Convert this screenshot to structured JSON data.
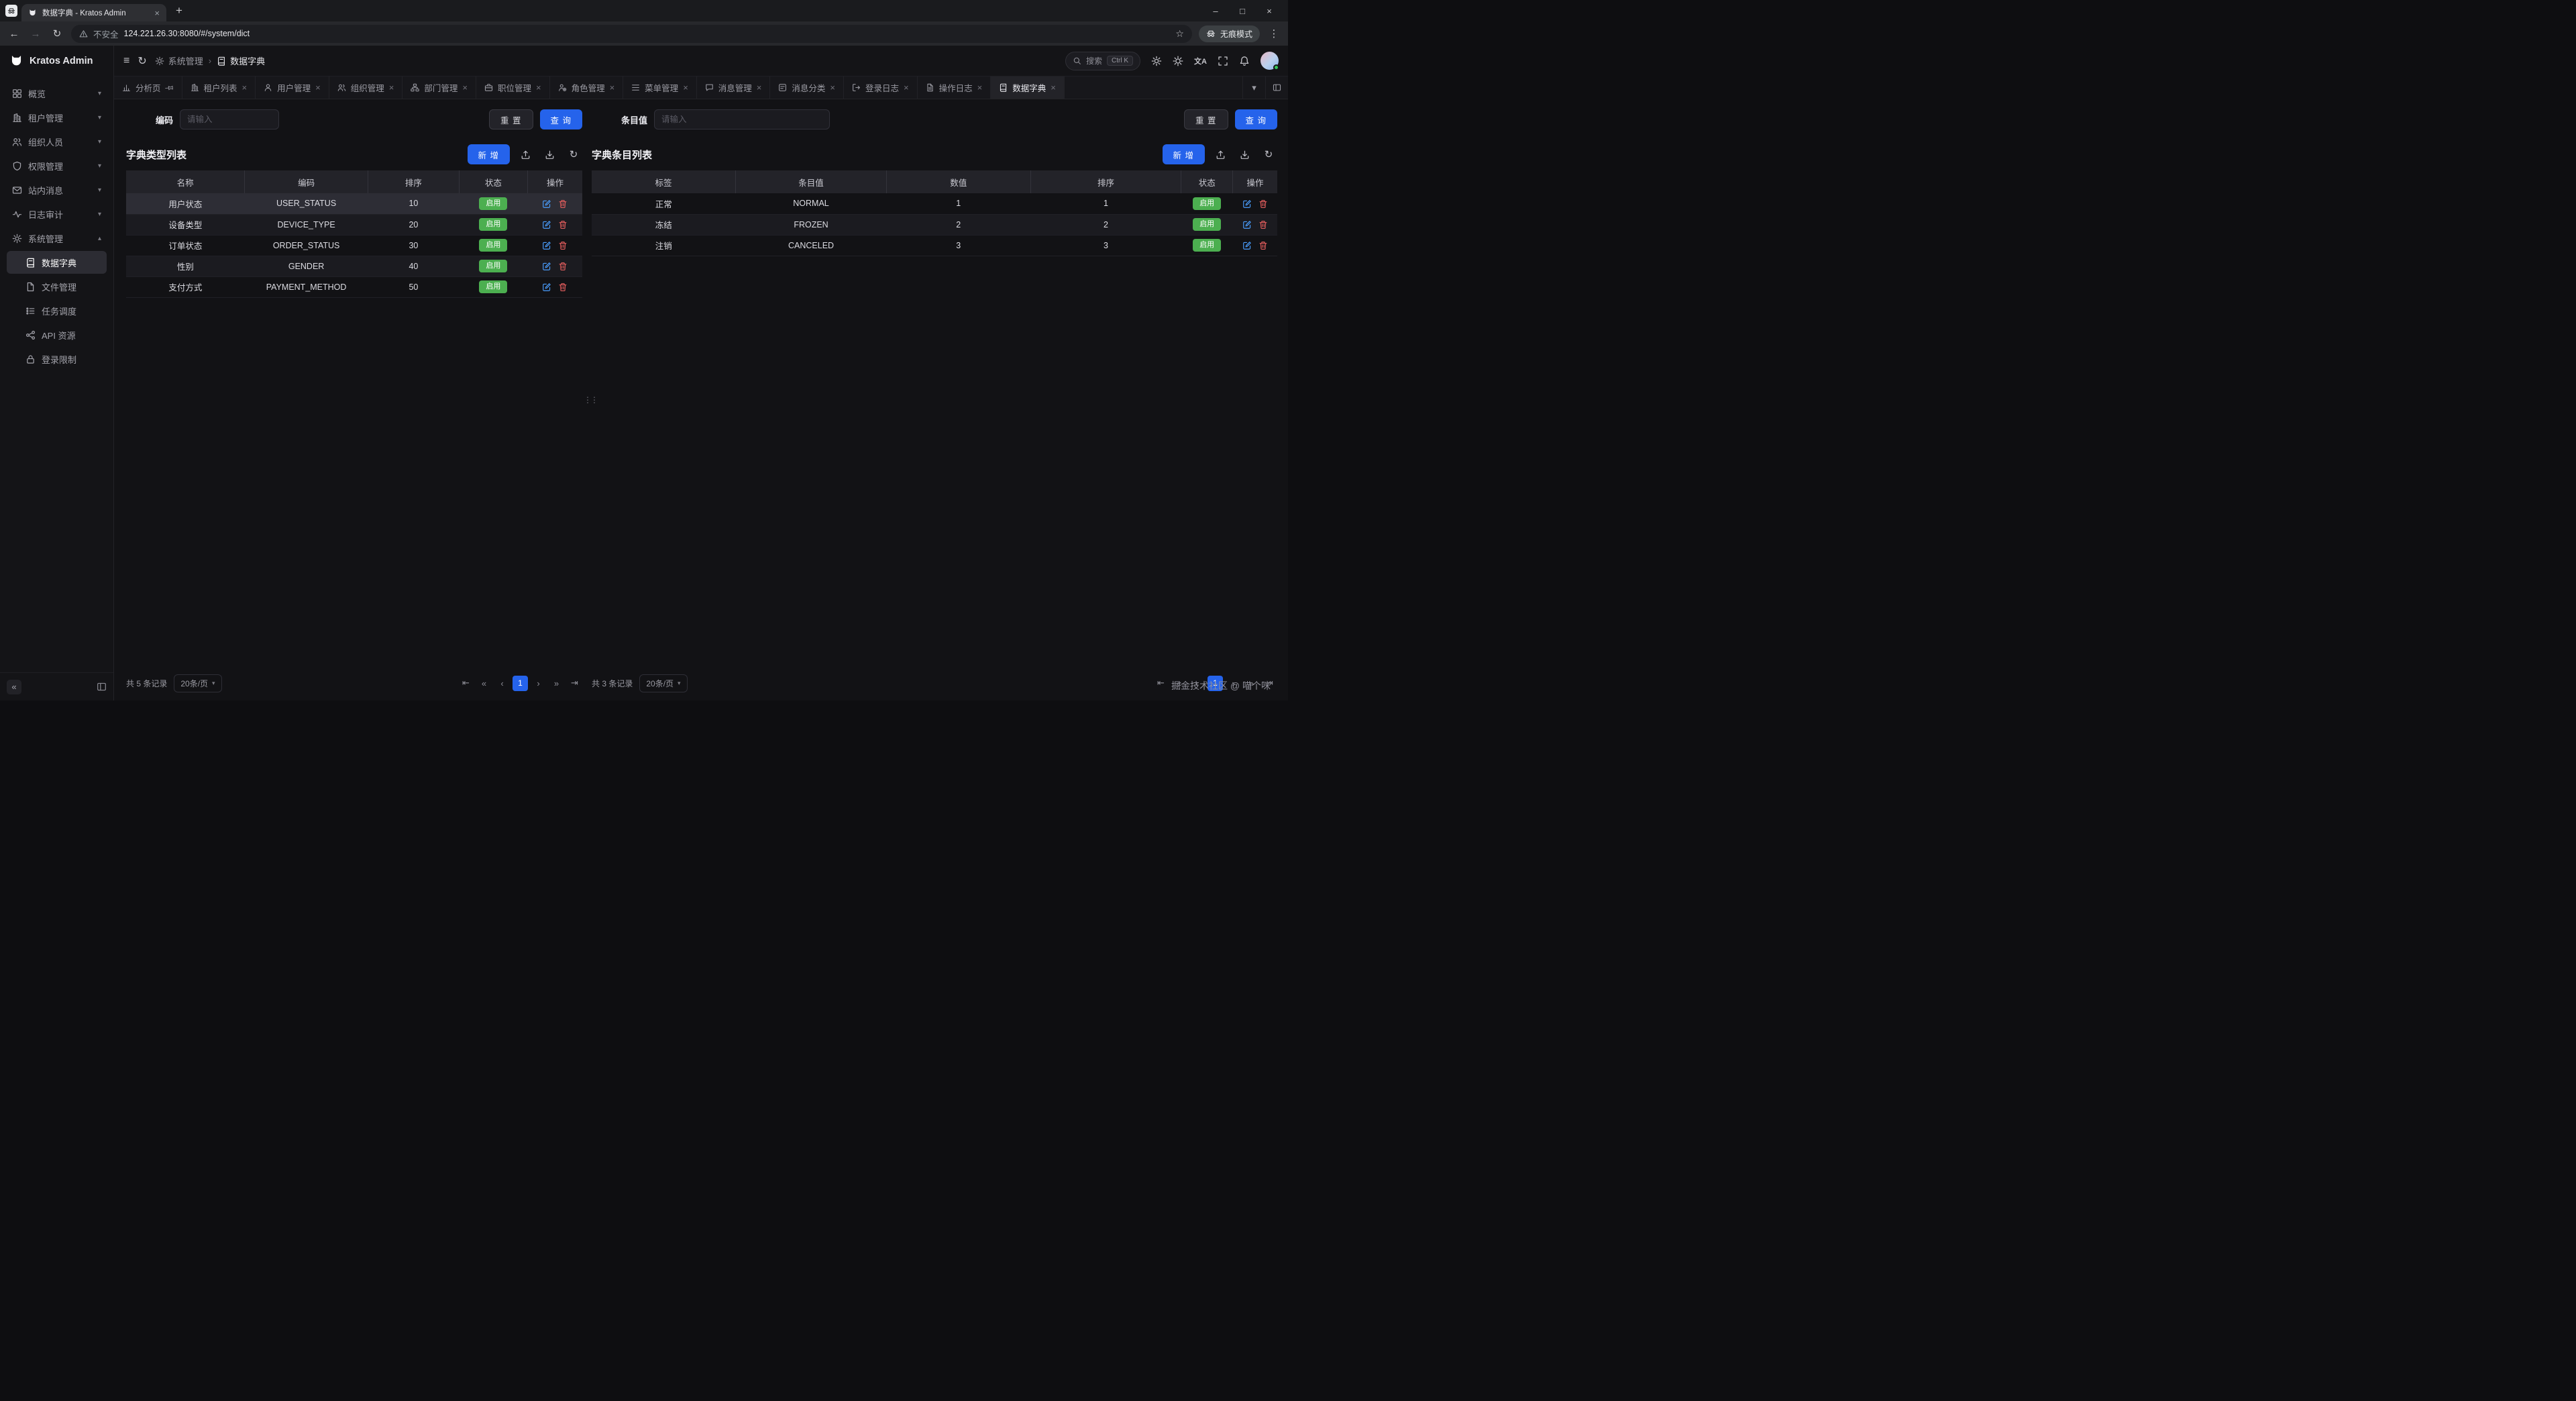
{
  "icons": {
    "hamburger": "≡",
    "refresh": "↻",
    "chevron_down": "▾",
    "chevron_up": "▴",
    "breadcrumb_sep": "›",
    "close": "×",
    "new_tab": "+",
    "minimize": "–",
    "maximize": "□",
    "back": "←",
    "forward": "→",
    "star": "☆",
    "menu_dots": "⋮",
    "collapse": "«",
    "pg_first": "⇤",
    "pg_prev5": "«",
    "pg_prev": "‹",
    "pg_next": "›",
    "pg_next5": "»",
    "pg_last": "⇥",
    "grip": "⋮⋮",
    "translate": "文A"
  },
  "browser": {
    "tab_title": "数据字典 - Kratos Admin",
    "security_label": "不安全",
    "url": "124.221.26.30:8080/#/system/dict",
    "incognito_label": "无痕模式"
  },
  "sidebar": {
    "logo": "Kratos Admin",
    "items": [
      {
        "label": "概览",
        "icon": "grid"
      },
      {
        "label": "租户管理",
        "icon": "building"
      },
      {
        "label": "组织人员",
        "icon": "users"
      },
      {
        "label": "权限管理",
        "icon": "shield"
      },
      {
        "label": "站内消息",
        "icon": "mail"
      },
      {
        "label": "日志审计",
        "icon": "activity"
      },
      {
        "label": "系统管理",
        "icon": "gear",
        "expanded": true
      }
    ],
    "sub_items": [
      {
        "label": "数据字典",
        "icon": "book",
        "active": true
      },
      {
        "label": "文件管理",
        "icon": "file"
      },
      {
        "label": "任务调度",
        "icon": "tasks"
      },
      {
        "label": "API 资源",
        "icon": "api"
      },
      {
        "label": "登录限制",
        "icon": "lock"
      }
    ]
  },
  "header": {
    "breadcrumb": [
      {
        "label": "系统管理",
        "icon": "gear"
      },
      {
        "label": "数据字典",
        "icon": "book"
      }
    ],
    "search_label": "搜索",
    "search_shortcut": "Ctrl K"
  },
  "tabs": [
    {
      "label": "分析页",
      "icon": "chart",
      "pinned": true
    },
    {
      "label": "租户列表",
      "icon": "building"
    },
    {
      "label": "用户管理",
      "icon": "user"
    },
    {
      "label": "组织管理",
      "icon": "users"
    },
    {
      "label": "部门管理",
      "icon": "dept"
    },
    {
      "label": "职位管理",
      "icon": "briefcase"
    },
    {
      "label": "角色管理",
      "icon": "role"
    },
    {
      "label": "菜单管理",
      "icon": "menu"
    },
    {
      "label": "消息管理",
      "icon": "message"
    },
    {
      "label": "消息分类",
      "icon": "category"
    },
    {
      "label": "登录日志",
      "icon": "login"
    },
    {
      "label": "操作日志",
      "icon": "oplog"
    },
    {
      "label": "数据字典",
      "icon": "book",
      "active": true
    }
  ],
  "left_panel": {
    "filter": {
      "label": "编码",
      "placeholder": "请输入"
    },
    "reset_label": "重 置",
    "query_label": "查 询",
    "title": "字典类型列表",
    "add_label": "新 增",
    "columns": [
      "名称",
      "编码",
      "排序",
      "状态",
      "操作"
    ],
    "rows": [
      {
        "cells": [
          "用户状态",
          "USER_STATUS",
          "10"
        ],
        "status": "启用",
        "selected": true
      },
      {
        "cells": [
          "设备类型",
          "DEVICE_TYPE",
          "20"
        ],
        "status": "启用"
      },
      {
        "cells": [
          "订单状态",
          "ORDER_STATUS",
          "30"
        ],
        "status": "启用"
      },
      {
        "cells": [
          "性别",
          "GENDER",
          "40"
        ],
        "status": "启用"
      },
      {
        "cells": [
          "支付方式",
          "PAYMENT_METHOD",
          "50"
        ],
        "status": "启用"
      }
    ],
    "footer": {
      "total": "共 5 条记录",
      "page_size": "20条/页",
      "page": "1"
    }
  },
  "right_panel": {
    "filter": {
      "label": "条目值",
      "placeholder": "请输入"
    },
    "reset_label": "重 置",
    "query_label": "查 询",
    "title": "字典条目列表",
    "add_label": "新 增",
    "columns": [
      "标签",
      "条目值",
      "数值",
      "排序",
      "状态",
      "操作"
    ],
    "rows": [
      {
        "cells": [
          "正常",
          "NORMAL",
          "1",
          "1"
        ],
        "status": "启用"
      },
      {
        "cells": [
          "冻结",
          "FROZEN",
          "2",
          "2"
        ],
        "status": "启用"
      },
      {
        "cells": [
          "注销",
          "CANCELED",
          "3",
          "3"
        ],
        "status": "启用"
      }
    ],
    "footer": {
      "total": "共 3 条记录",
      "page_size": "20条/页",
      "page": "1"
    }
  },
  "watermark": "掘金技术社区 @ 喵个咪",
  "colors": {
    "accent": "#2563eb",
    "success": "#4caf50",
    "danger": "#e05c5c",
    "edit": "#4a9eff"
  }
}
